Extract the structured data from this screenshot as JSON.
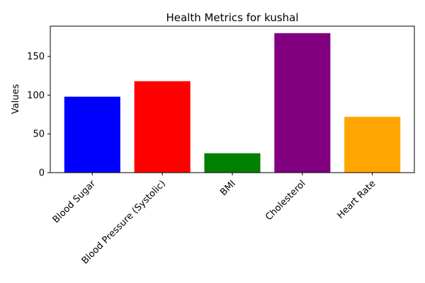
{
  "chart_data": {
    "type": "bar",
    "title": "Health Metrics for kushal",
    "xlabel": "",
    "ylabel": "Values",
    "categories": [
      "Blood Sugar",
      "Blood Pressure (Systolic)",
      "BMI",
      "Cholesterol",
      "Heart Rate"
    ],
    "values": [
      98,
      118,
      25,
      180,
      72
    ],
    "colors": [
      "#0000ff",
      "#ff0000",
      "#008000",
      "#800080",
      "#ffa500"
    ],
    "ylim": [
      0,
      189
    ],
    "yticks": [
      0,
      50,
      100,
      150
    ],
    "ytick_labels": [
      "0",
      "50",
      "100",
      "150"
    ],
    "grid": false,
    "legend": "none"
  }
}
